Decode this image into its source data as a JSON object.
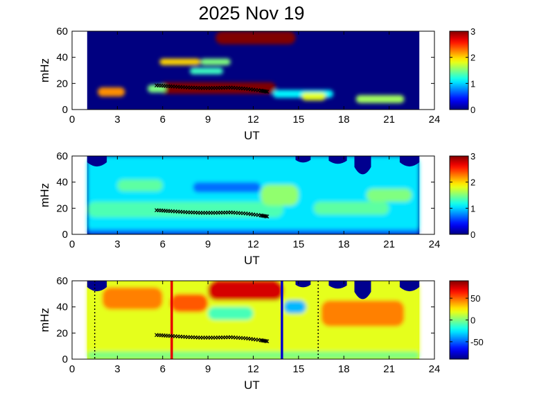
{
  "title": "2025 Nov 19",
  "chart_data": [
    {
      "type": "heatmap",
      "xlabel": "UT",
      "ylabel": "mHz",
      "xlim": [
        0,
        24
      ],
      "ylim": [
        0,
        60
      ],
      "xticks": [
        "0",
        "3",
        "6",
        "9",
        "12",
        "15",
        "18",
        "21",
        "24"
      ],
      "yticks": [
        "0",
        "20",
        "40",
        "60"
      ],
      "data_time_range": [
        1,
        23
      ],
      "colorbar": {
        "range": [
          0,
          3
        ],
        "ticks": [
          "0",
          "1",
          "2",
          "3"
        ]
      },
      "features": [
        {
          "t0": 5.8,
          "t1": 13.5,
          "f0": 12,
          "f1": 21,
          "level": 3.0
        },
        {
          "t0": 9.5,
          "t1": 14.8,
          "f0": 50,
          "f1": 60,
          "level": 3.0
        },
        {
          "t0": 1.7,
          "t1": 3.5,
          "f0": 10,
          "f1": 17,
          "level": 2.2
        },
        {
          "t0": 5.0,
          "t1": 6.2,
          "f0": 13,
          "f1": 19,
          "level": 1.5
        },
        {
          "t0": 13.3,
          "t1": 17.3,
          "f0": 9,
          "f1": 15,
          "level": 1.1
        },
        {
          "t0": 15.2,
          "t1": 16.8,
          "f0": 7,
          "f1": 13,
          "level": 1.8
        },
        {
          "t0": 18.8,
          "t1": 22.0,
          "f0": 5,
          "f1": 11,
          "level": 1.6
        },
        {
          "t0": 5.8,
          "t1": 8.5,
          "f0": 34,
          "f1": 39,
          "level": 2.0
        },
        {
          "t0": 8.5,
          "t1": 10.5,
          "f0": 34,
          "f1": 39,
          "level": 1.5
        },
        {
          "t0": 7.8,
          "t1": 10.0,
          "f0": 27,
          "f1": 32,
          "level": 1.3
        }
      ],
      "track": [
        [
          5.6,
          18.5
        ],
        [
          6.5,
          17.8
        ],
        [
          7.5,
          17.0
        ],
        [
          8.5,
          16.5
        ],
        [
          9.5,
          16.5
        ],
        [
          10.5,
          16.8
        ],
        [
          11.5,
          16.0
        ],
        [
          12.5,
          14.5
        ],
        [
          13.0,
          13.5
        ]
      ]
    },
    {
      "type": "heatmap",
      "xlabel": "UT",
      "ylabel": "mHz",
      "xlim": [
        0,
        24
      ],
      "ylim": [
        0,
        60
      ],
      "xticks": [
        "0",
        "3",
        "6",
        "9",
        "12",
        "15",
        "18",
        "21",
        "24"
      ],
      "yticks": [
        "0",
        "20",
        "40",
        "60"
      ],
      "data_time_range": [
        1,
        23
      ],
      "colorbar": {
        "range": [
          0,
          3
        ],
        "ticks": [
          "0",
          "1",
          "2",
          "3"
        ]
      },
      "features": [
        {
          "t0": 1.0,
          "t1": 23.0,
          "f0": 0,
          "f1": 60,
          "level": 1.05
        },
        {
          "t0": 1.0,
          "t1": 14.0,
          "f0": 13,
          "f1": 25,
          "level": 1.35
        },
        {
          "t0": 3.0,
          "t1": 6.0,
          "f0": 33,
          "f1": 42,
          "level": 1.4
        },
        {
          "t0": 8.0,
          "t1": 12.5,
          "f0": 32,
          "f1": 40,
          "level": 0.7
        },
        {
          "t0": 12.5,
          "t1": 15.0,
          "f0": 22,
          "f1": 38,
          "level": 1.55
        },
        {
          "t0": 16.0,
          "t1": 21.0,
          "f0": 15,
          "f1": 25,
          "level": 1.4
        },
        {
          "t0": 19.5,
          "t1": 22.5,
          "f0": 25,
          "f1": 35,
          "level": 1.5
        },
        {
          "t0": 1.0,
          "t1": 23.0,
          "f0": 0,
          "f1": 4,
          "level": 0.75
        }
      ],
      "gaps": [
        [
          1.0,
          2.3,
          52
        ],
        [
          14.8,
          15.8,
          55
        ],
        [
          17.0,
          18.2,
          54
        ],
        [
          18.7,
          19.8,
          46
        ],
        [
          21.7,
          23.0,
          52
        ]
      ],
      "track": [
        [
          5.6,
          18.5
        ],
        [
          6.5,
          17.8
        ],
        [
          7.5,
          17.0
        ],
        [
          8.5,
          16.5
        ],
        [
          9.5,
          16.5
        ],
        [
          10.5,
          16.8
        ],
        [
          11.5,
          16.0
        ],
        [
          12.5,
          14.5
        ],
        [
          13.0,
          13.5
        ]
      ]
    },
    {
      "type": "heatmap",
      "xlabel": "UT",
      "ylabel": "mHz",
      "xlim": [
        0,
        24
      ],
      "ylim": [
        0,
        60
      ],
      "xticks": [
        "0",
        "3",
        "6",
        "9",
        "12",
        "15",
        "18",
        "21",
        "24"
      ],
      "yticks": [
        "0",
        "20",
        "40",
        "60"
      ],
      "data_time_range": [
        1,
        23
      ],
      "colorbar": {
        "range": [
          -90,
          90
        ],
        "ticks": [
          "50",
          "0",
          "-50"
        ],
        "tick_values": [
          50,
          0,
          -50
        ]
      },
      "features": [
        {
          "t0": 1.0,
          "t1": 23.0,
          "f0": 0,
          "f1": 60,
          "level": 18
        },
        {
          "t0": 9.0,
          "t1": 14.0,
          "f0": 45,
          "f1": 60,
          "level": 75
        },
        {
          "t0": 2.0,
          "t1": 6.0,
          "f0": 38,
          "f1": 55,
          "level": 45
        },
        {
          "t0": 6.5,
          "t1": 9.0,
          "f0": 36,
          "f1": 50,
          "level": 52
        },
        {
          "t0": 16.5,
          "t1": 22.0,
          "f0": 25,
          "f1": 45,
          "level": 45
        },
        {
          "t0": 9.0,
          "t1": 12.0,
          "f0": 30,
          "f1": 40,
          "level": -10
        },
        {
          "t0": 14.0,
          "t1": 15.5,
          "f0": 35,
          "f1": 45,
          "level": -35
        },
        {
          "t0": 1.0,
          "t1": 23.0,
          "f0": 0,
          "f1": 6,
          "level": 0
        }
      ],
      "gaps": [
        [
          1.0,
          2.3,
          52
        ],
        [
          14.8,
          15.8,
          55
        ],
        [
          17.0,
          18.2,
          54
        ],
        [
          18.7,
          19.8,
          46
        ],
        [
          21.7,
          23.0,
          52
        ]
      ],
      "track": [
        [
          5.6,
          18.5
        ],
        [
          6.5,
          17.8
        ],
        [
          7.5,
          17.0
        ],
        [
          8.5,
          16.5
        ],
        [
          9.5,
          16.5
        ],
        [
          10.5,
          16.8
        ],
        [
          11.5,
          16.0
        ],
        [
          12.5,
          14.5
        ],
        [
          13.0,
          13.5
        ]
      ],
      "vlines": [
        {
          "t": 6.6,
          "color": "#e60000",
          "style": "solid"
        },
        {
          "t": 13.9,
          "color": "#0000cc",
          "style": "solid"
        },
        {
          "t": 1.5,
          "color": "#000000",
          "style": "dotted"
        },
        {
          "t": 16.3,
          "color": "#000000",
          "style": "dotted"
        }
      ]
    }
  ]
}
